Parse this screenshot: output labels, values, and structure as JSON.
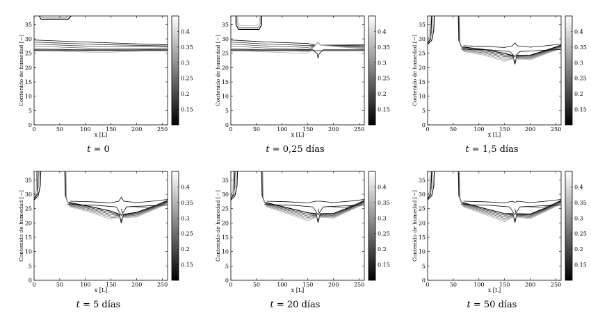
{
  "chart_data": {
    "type": "contour",
    "xlabel": "x [L]",
    "ylabel": "Contenido de humedad [−]",
    "xlim": [
      0,
      260
    ],
    "ylim": [
      0,
      38
    ],
    "xticks": [
      "0",
      "50",
      "100",
      "150",
      "200",
      "250"
    ],
    "yticks": [
      "0",
      "5",
      "10",
      "15",
      "20",
      "25",
      "30",
      "35"
    ],
    "colorbar": {
      "range": [
        0.1,
        0.45
      ],
      "ticks": [
        "0.15",
        "0.2",
        "0.25",
        "0.3",
        "0.35",
        "0.4"
      ],
      "colormap": "gray"
    },
    "panels": [
      {
        "t_symbol": "t",
        "t_value": "= 0",
        "stage": 0
      },
      {
        "t_symbol": "t",
        "t_value": "= 0,25 días",
        "stage": 1
      },
      {
        "t_symbol": "t",
        "t_value": "= 1,5 días",
        "stage": 2
      },
      {
        "t_symbol": "t",
        "t_value": "= 5 días",
        "stage": 3
      },
      {
        "t_symbol": "t",
        "t_value": "= 20 días",
        "stage": 4
      },
      {
        "t_symbol": "t",
        "t_value": "= 50 días",
        "stage": 5
      }
    ]
  }
}
